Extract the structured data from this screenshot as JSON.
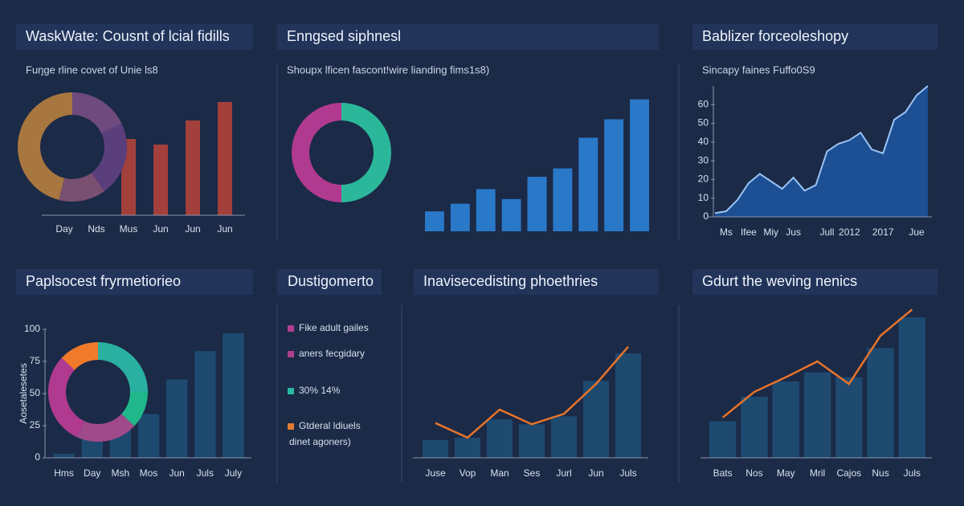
{
  "chart_data": [
    {
      "type": "pie",
      "title": "WaskWate: Cousnt of lcial fidills",
      "subtitle": "Fuŋge rline covet of Unie ls8",
      "values": [
        18,
        22,
        14,
        46
      ],
      "colors": [
        "#6e4a7e",
        "#5b3f7d",
        "#7a5070",
        "#a8763f"
      ]
    },
    {
      "type": "bar",
      "categories": [
        "Day",
        "Nds",
        "Mus",
        "Jun",
        "Jun",
        "Jun"
      ],
      "values": [
        null,
        null,
        95,
        88,
        118,
        141
      ],
      "color": "#a3403c",
      "ylim": [
        0,
        150
      ]
    },
    {
      "type": "pie",
      "title": "Enngsed siphnesl",
      "subtitle": "Shoupx lficen fascont!wire lianding fims1s8)",
      "values": [
        50,
        50
      ],
      "colors": [
        "#2bb89a",
        "#b03a8f"
      ]
    },
    {
      "type": "bar",
      "values": [
        26,
        36,
        55,
        42,
        71,
        82,
        122,
        146,
        172
      ],
      "color": "#2a78c8",
      "ylim": [
        0,
        180
      ]
    },
    {
      "type": "area",
      "title": "Bablizer forceoleshopy",
      "subtitle": "Sincapy faines Fuffo0S9",
      "categories": [
        null,
        "Ms",
        null,
        "Ifee",
        null,
        "Miy",
        null,
        "Jus",
        null,
        null,
        "Jull",
        null,
        "2012",
        null,
        null,
        "2017",
        null,
        null,
        "Jue",
        null
      ],
      "values": [
        2,
        3,
        9,
        18,
        23,
        19,
        15,
        21,
        14,
        17,
        35,
        39,
        41,
        45,
        36,
        34,
        52,
        56,
        65,
        70
      ],
      "color": "#1c4f94",
      "line_color": "#9cc4f4",
      "ylim": [
        0,
        70
      ],
      "yticks": [
        0,
        10,
        20,
        30,
        40,
        50,
        60
      ]
    },
    {
      "type": "pie",
      "title": "Paplsocest fryrmetiorieo",
      "values": [
        25,
        12,
        20,
        30,
        13
      ],
      "colors": [
        "#2ab0a0",
        "#20b88a",
        "#a04a8a",
        "#b03a90",
        "#f07a2a"
      ]
    },
    {
      "type": "bar",
      "y_label": "Aosetalesetes",
      "categories": [
        "Hms",
        "Day",
        "Msh",
        "Mos",
        "Jun",
        "Juls",
        "July"
      ],
      "values": [
        3,
        20,
        25,
        34,
        61,
        83,
        97
      ],
      "color": "#1e4a70",
      "ylim": [
        0,
        100
      ],
      "yticks": [
        0,
        25,
        50,
        75,
        100
      ]
    },
    {
      "type": "combo",
      "title": "Inavisecedisting phoethries",
      "categories": [
        "Juse",
        "Vop",
        "Man",
        "Ses",
        "Jurl",
        "Jun",
        "Juls"
      ],
      "series": [
        {
          "color": "#1e4a70",
          "values": [
            29,
            33,
            63,
            55,
            68,
            126,
            171
          ]
        },
        {
          "color": "#e8742a",
          "kind": "line",
          "values": [
            57,
            33,
            79,
            55,
            72,
            121,
            182
          ]
        }
      ],
      "ylim": [
        0,
        250
      ]
    },
    {
      "type": "combo",
      "title": "Gdurt the weving nenics",
      "categories": [
        "Bats",
        "Nos",
        "May",
        "Mril",
        "Cajos",
        "Nus",
        "Juls"
      ],
      "series": [
        {
          "color": "#1e4a70",
          "values": [
            60,
            100,
            125,
            140,
            132,
            180,
            230
          ]
        },
        {
          "color": "#e8742a",
          "kind": "line",
          "values": [
            66,
            108,
            132,
            158,
            121,
            200,
            243
          ]
        }
      ],
      "ylim": [
        0,
        250
      ]
    }
  ],
  "legend_panel": {
    "title": "Dustigomerto",
    "items": [
      {
        "label": "Fike adult gailes",
        "color": "#b0408f"
      },
      {
        "label": "aners fecgidary",
        "color": "#b0408f"
      },
      {
        "label": "30% 14%",
        "color": "#2ab8a0"
      },
      {
        "label": "Gtderal ldiuels",
        "color": "#e07a30"
      }
    ],
    "note": "dinet agoners)"
  }
}
